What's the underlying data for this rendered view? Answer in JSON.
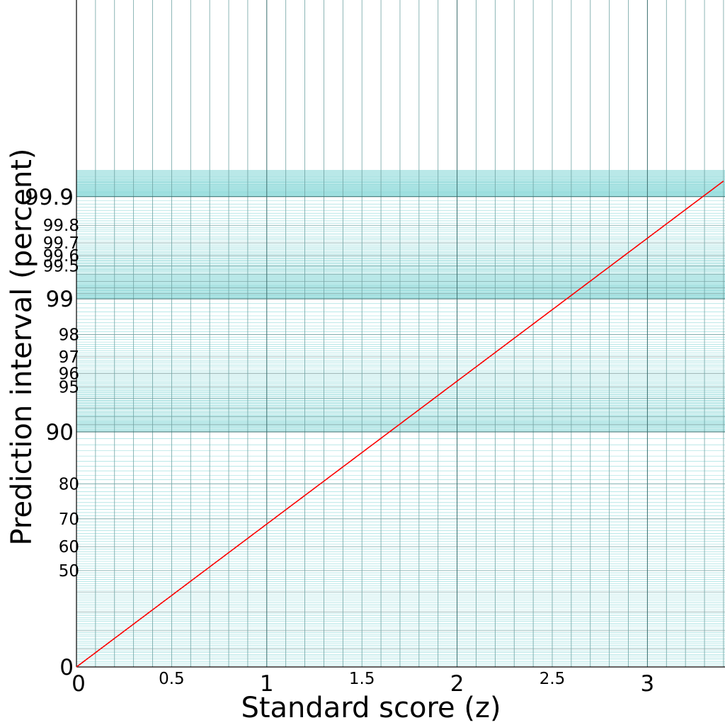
{
  "chart_data": {
    "type": "line",
    "title": "",
    "xlabel": "Standard score (z)",
    "ylabel": "Prediction interval (percent)",
    "xlim": [
      0,
      3.4
    ],
    "ylim_percent": [
      0,
      99.95
    ],
    "y_scale": "erf (probability scale)",
    "grid": true,
    "colors": {
      "curve": "#ff0000",
      "grid_major": "#3a6e6e",
      "grid_medium": "#6fa3a3",
      "grid_minor": "#8fdada",
      "axis": "#000000"
    },
    "x_ticks_major": [
      {
        "value": 0,
        "label": "0"
      },
      {
        "value": 1,
        "label": "1"
      },
      {
        "value": 2,
        "label": "2"
      },
      {
        "value": 3,
        "label": "3"
      }
    ],
    "x_ticks_minor": [
      {
        "value": 0.5,
        "label": "0.5"
      },
      {
        "value": 1.5,
        "label": "1.5"
      },
      {
        "value": 2.5,
        "label": "2.5"
      }
    ],
    "y_ticks_major": [
      {
        "value": 0,
        "label": "0"
      },
      {
        "value": 90,
        "label": "90"
      },
      {
        "value": 99,
        "label": "99"
      },
      {
        "value": 99.9,
        "label": "99.9"
      }
    ],
    "y_ticks_minor": [
      {
        "value": 50,
        "label": "50"
      },
      {
        "value": 60,
        "label": "60"
      },
      {
        "value": 70,
        "label": "70"
      },
      {
        "value": 80,
        "label": "80"
      },
      {
        "value": 95,
        "label": "95"
      },
      {
        "value": 96,
        "label": "96"
      },
      {
        "value": 97,
        "label": "97"
      },
      {
        "value": 98,
        "label": "98"
      },
      {
        "value": 99.5,
        "label": "99.5"
      },
      {
        "value": 99.6,
        "label": "99.6"
      },
      {
        "value": 99.7,
        "label": "99.7"
      },
      {
        "value": 99.8,
        "label": "99.8"
      }
    ],
    "series": [
      {
        "x": [
          0,
          0.25,
          0.5,
          0.75,
          1.0,
          1.25,
          1.5,
          1.75,
          2.0,
          2.25,
          2.5,
          2.75,
          3.0,
          3.25,
          3.4
        ],
        "y": [
          0,
          19.74,
          38.29,
          54.67,
          68.27,
          78.87,
          86.64,
          91.99,
          95.45,
          97.56,
          98.76,
          99.4,
          99.73,
          99.885,
          99.933
        ]
      }
    ]
  }
}
